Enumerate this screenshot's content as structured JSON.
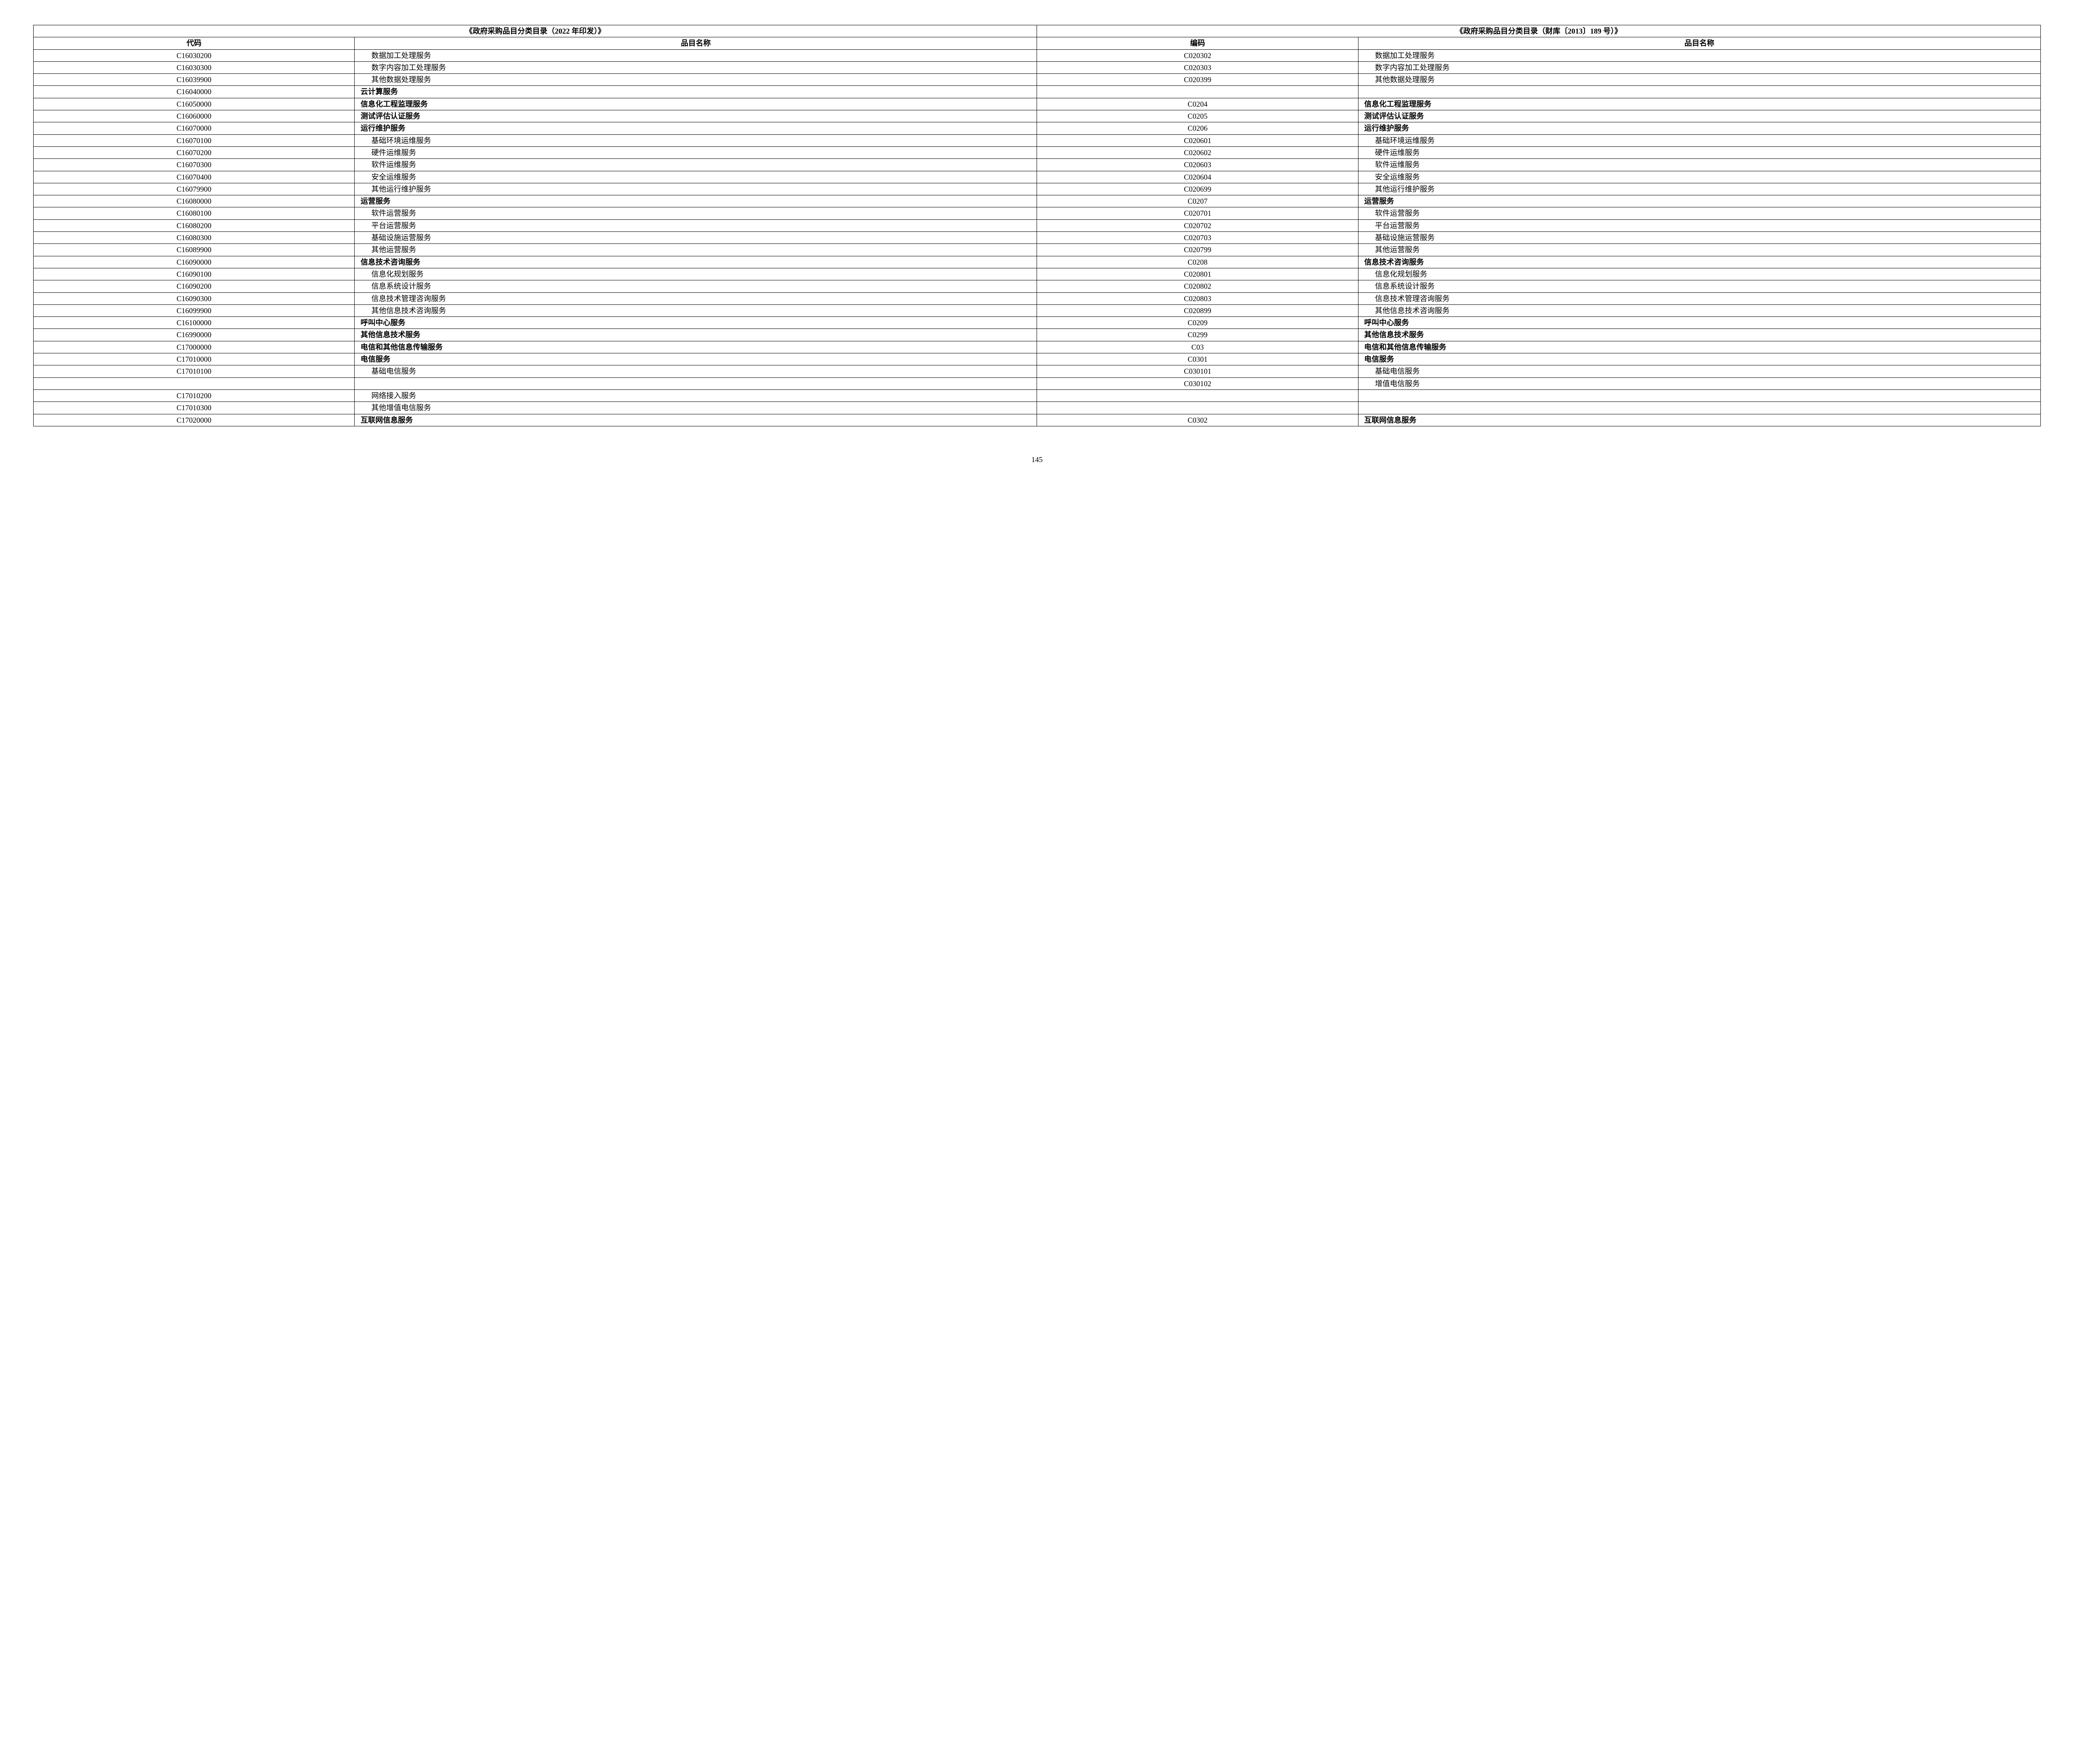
{
  "page_number": "145",
  "header_group_left": "《政府采购品目分类目录（2022 年印发）》",
  "header_group_right": "《政府采购品目分类目录（财库〔2013〕189 号）》",
  "header_code_left": "代码",
  "header_name_left": "品目名称",
  "header_code_right": "编码",
  "header_name_right": "品目名称",
  "rows": [
    {
      "c1": "C16030200",
      "n1": "数据加工处理服务",
      "i1": true,
      "b1": false,
      "c2": "C020302",
      "n2": "数据加工处理服务",
      "i2": true,
      "b2": false
    },
    {
      "c1": "C16030300",
      "n1": "数字内容加工处理服务",
      "i1": true,
      "b1": false,
      "c2": "C020303",
      "n2": "数字内容加工处理服务",
      "i2": true,
      "b2": false
    },
    {
      "c1": "C16039900",
      "n1": "其他数据处理服务",
      "i1": true,
      "b1": false,
      "c2": "C020399",
      "n2": "其他数据处理服务",
      "i2": true,
      "b2": false
    },
    {
      "c1": "C16040000",
      "n1": "云计算服务",
      "i1": false,
      "b1": true,
      "c2": "",
      "n2": "",
      "i2": false,
      "b2": false
    },
    {
      "c1": "C16050000",
      "n1": "信息化工程监理服务",
      "i1": false,
      "b1": true,
      "c2": "C0204",
      "n2": "信息化工程监理服务",
      "i2": false,
      "b2": true
    },
    {
      "c1": "C16060000",
      "n1": "测试评估认证服务",
      "i1": false,
      "b1": true,
      "c2": "C0205",
      "n2": "测试评估认证服务",
      "i2": false,
      "b2": true
    },
    {
      "c1": "C16070000",
      "n1": "运行维护服务",
      "i1": false,
      "b1": true,
      "c2": "C0206",
      "n2": "运行维护服务",
      "i2": false,
      "b2": true
    },
    {
      "c1": "C16070100",
      "n1": "基础环境运维服务",
      "i1": true,
      "b1": false,
      "c2": "C020601",
      "n2": "基础环境运维服务",
      "i2": true,
      "b2": false
    },
    {
      "c1": "C16070200",
      "n1": "硬件运维服务",
      "i1": true,
      "b1": false,
      "c2": "C020602",
      "n2": "硬件运维服务",
      "i2": true,
      "b2": false
    },
    {
      "c1": "C16070300",
      "n1": "软件运维服务",
      "i1": true,
      "b1": false,
      "c2": "C020603",
      "n2": "软件运维服务",
      "i2": true,
      "b2": false
    },
    {
      "c1": "C16070400",
      "n1": "安全运维服务",
      "i1": true,
      "b1": false,
      "c2": "C020604",
      "n2": "安全运维服务",
      "i2": true,
      "b2": false
    },
    {
      "c1": "C16079900",
      "n1": "其他运行维护服务",
      "i1": true,
      "b1": false,
      "c2": "C020699",
      "n2": "其他运行维护服务",
      "i2": true,
      "b2": false
    },
    {
      "c1": "C16080000",
      "n1": "运营服务",
      "i1": false,
      "b1": true,
      "c2": "C0207",
      "n2": "运营服务",
      "i2": false,
      "b2": true
    },
    {
      "c1": "C16080100",
      "n1": "软件运营服务",
      "i1": true,
      "b1": false,
      "c2": "C020701",
      "n2": "软件运营服务",
      "i2": true,
      "b2": false
    },
    {
      "c1": "C16080200",
      "n1": "平台运营服务",
      "i1": true,
      "b1": false,
      "c2": "C020702",
      "n2": "平台运营服务",
      "i2": true,
      "b2": false
    },
    {
      "c1": "C16080300",
      "n1": "基础设施运营服务",
      "i1": true,
      "b1": false,
      "c2": "C020703",
      "n2": "基础设施运营服务",
      "i2": true,
      "b2": false
    },
    {
      "c1": "C16089900",
      "n1": "其他运营服务",
      "i1": true,
      "b1": false,
      "c2": "C020799",
      "n2": "其他运营服务",
      "i2": true,
      "b2": false
    },
    {
      "c1": "C16090000",
      "n1": "信息技术咨询服务",
      "i1": false,
      "b1": true,
      "c2": "C0208",
      "n2": "信息技术咨询服务",
      "i2": false,
      "b2": true
    },
    {
      "c1": "C16090100",
      "n1": "信息化规划服务",
      "i1": true,
      "b1": false,
      "c2": "C020801",
      "n2": "信息化规划服务",
      "i2": true,
      "b2": false
    },
    {
      "c1": "C16090200",
      "n1": "信息系统设计服务",
      "i1": true,
      "b1": false,
      "c2": "C020802",
      "n2": "信息系统设计服务",
      "i2": true,
      "b2": false
    },
    {
      "c1": "C16090300",
      "n1": "信息技术管理咨询服务",
      "i1": true,
      "b1": false,
      "c2": "C020803",
      "n2": "信息技术管理咨询服务",
      "i2": true,
      "b2": false
    },
    {
      "c1": "C16099900",
      "n1": "其他信息技术咨询服务",
      "i1": true,
      "b1": false,
      "c2": "C020899",
      "n2": "其他信息技术咨询服务",
      "i2": true,
      "b2": false
    },
    {
      "c1": "C16100000",
      "n1": "呼叫中心服务",
      "i1": false,
      "b1": true,
      "c2": "C0209",
      "n2": "呼叫中心服务",
      "i2": false,
      "b2": true
    },
    {
      "c1": "C16990000",
      "n1": "其他信息技术服务",
      "i1": false,
      "b1": true,
      "c2": "C0299",
      "n2": "其他信息技术服务",
      "i2": false,
      "b2": true
    },
    {
      "c1": "C17000000",
      "n1": "电信和其他信息传输服务",
      "i1": false,
      "b1": true,
      "c2": "C03",
      "n2": "电信和其他信息传输服务",
      "i2": false,
      "b2": true
    },
    {
      "c1": "C17010000",
      "n1": "电信服务",
      "i1": false,
      "b1": true,
      "c2": "C0301",
      "n2": "电信服务",
      "i2": false,
      "b2": true
    },
    {
      "c1": "C17010100",
      "n1": "基础电信服务",
      "i1": true,
      "b1": false,
      "c2": "C030101",
      "n2": "基础电信服务",
      "i2": true,
      "b2": false
    },
    {
      "c1": "",
      "n1": "",
      "i1": false,
      "b1": false,
      "c2": "C030102",
      "n2": "增值电信服务",
      "i2": true,
      "b2": false
    },
    {
      "c1": "C17010200",
      "n1": "网络接入服务",
      "i1": true,
      "b1": false,
      "c2": "",
      "n2": "",
      "i2": false,
      "b2": false
    },
    {
      "c1": "C17010300",
      "n1": "其他增值电信服务",
      "i1": true,
      "b1": false,
      "c2": "",
      "n2": "",
      "i2": false,
      "b2": false
    },
    {
      "c1": "C17020000",
      "n1": "互联网信息服务",
      "i1": false,
      "b1": true,
      "c2": "C0302",
      "n2": "互联网信息服务",
      "i2": false,
      "b2": true
    }
  ]
}
